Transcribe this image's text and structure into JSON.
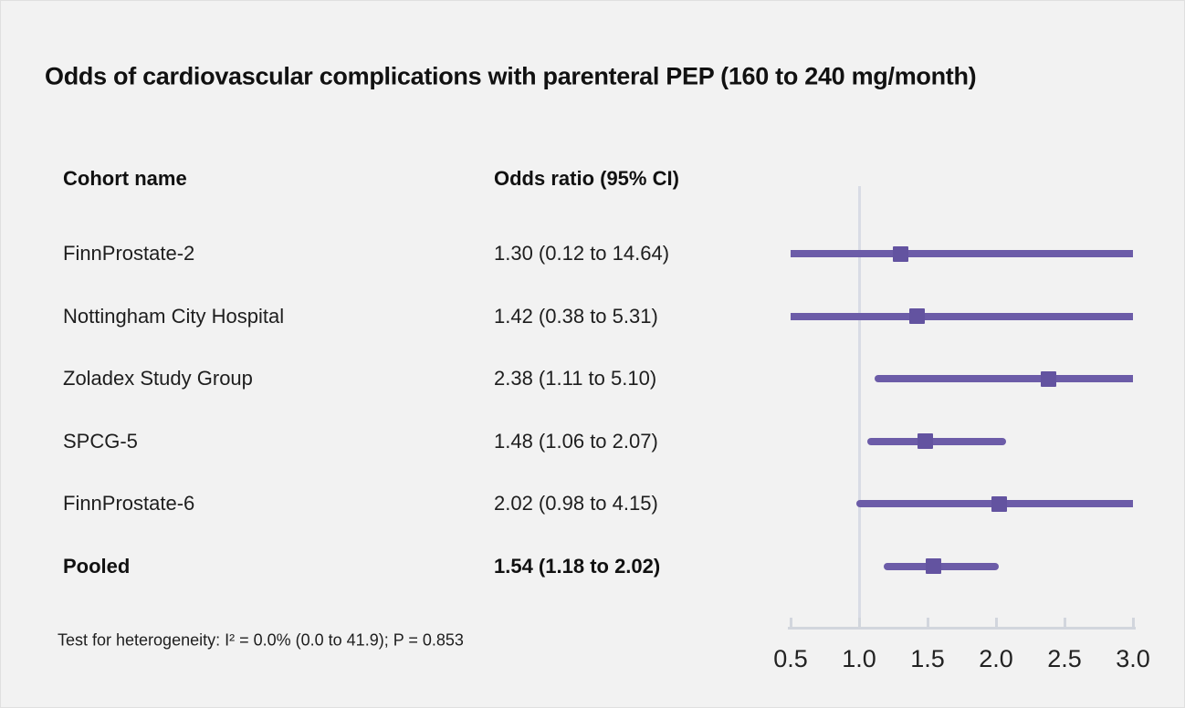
{
  "chart_data": {
    "type": "scatter",
    "variant": "forest-plot",
    "title": "Odds of cardiovascular complications with parenteral PEP (160 to 240 mg/month)",
    "columns": {
      "cohort": "Cohort name",
      "odds": "Odds ratio (95% CI)"
    },
    "rows": [
      {
        "cohort": "FinnProstate-2",
        "or_text": "1.30 (0.12 to 14.64)",
        "estimate": 1.3,
        "ci_low": 0.12,
        "ci_high": 14.64,
        "pooled": false
      },
      {
        "cohort": "Nottingham City Hospital",
        "or_text": "1.42 (0.38 to 5.31)",
        "estimate": 1.42,
        "ci_low": 0.38,
        "ci_high": 5.31,
        "pooled": false
      },
      {
        "cohort": "Zoladex Study Group",
        "or_text": "2.38 (1.11 to 5.10)",
        "estimate": 2.38,
        "ci_low": 1.11,
        "ci_high": 5.1,
        "pooled": false
      },
      {
        "cohort": "SPCG-5",
        "or_text": "1.48 (1.06 to 2.07)",
        "estimate": 1.48,
        "ci_low": 1.06,
        "ci_high": 2.07,
        "pooled": false
      },
      {
        "cohort": "FinnProstate-6",
        "or_text": "2.02 (0.98 to 4.15)",
        "estimate": 2.02,
        "ci_low": 0.98,
        "ci_high": 4.15,
        "pooled": false
      },
      {
        "cohort": "Pooled",
        "or_text": "1.54 (1.18 to 2.02)",
        "estimate": 1.54,
        "ci_low": 1.18,
        "ci_high": 2.02,
        "pooled": true
      }
    ],
    "xlim": [
      0.5,
      3.0
    ],
    "x_ticks": [
      0.5,
      1.0,
      1.5,
      2.0,
      2.5,
      3.0
    ],
    "x_tick_labels": [
      "0.5",
      "1.0",
      "1.5",
      "2.0",
      "2.5",
      "3.0"
    ],
    "reference_line": 1.0,
    "footnote": "Test for heterogeneity: I² = 0.0% (0.0 to 41.9); P = 0.853",
    "legend": "none",
    "grid": "off",
    "colors": {
      "background": "#f2f2f2",
      "text": "#1a1a1a",
      "ci_line": "#6c5ca8",
      "marker": "#6353a0",
      "axis": "#d2d6dd",
      "reference_line": "#d9dce5"
    }
  }
}
